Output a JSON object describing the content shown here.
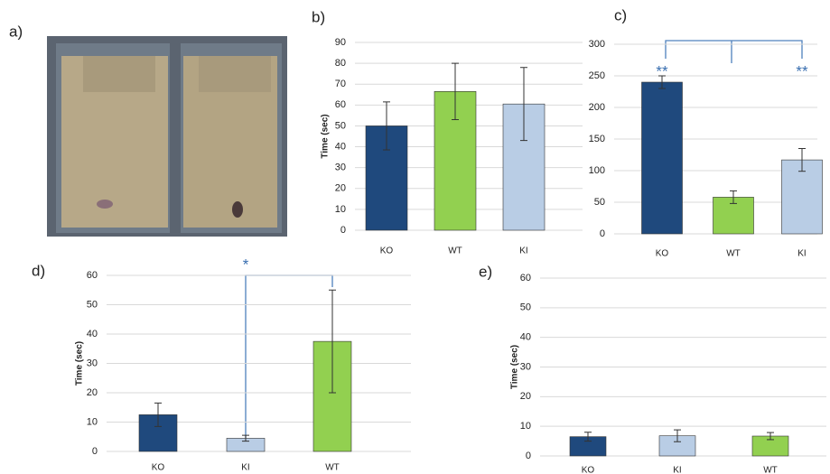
{
  "photo": {
    "label": "a)"
  },
  "chart_data": [
    {
      "type": "bar",
      "label": "b)",
      "y_label": "Time (sec)",
      "categories": [
        "KO",
        "WT",
        "KI"
      ],
      "values": [
        50,
        66.5,
        60.5
      ],
      "errors": [
        11.5,
        13.5,
        17.5
      ],
      "colors": [
        "#1f497d",
        "#92d050",
        "#b9cde5"
      ],
      "ylim": [
        0,
        90
      ],
      "yticks": [
        0,
        10,
        20,
        30,
        40,
        50,
        60,
        70,
        80,
        90
      ],
      "grid": true
    },
    {
      "type": "bar",
      "label": "c)",
      "categories": [
        "KO",
        "WT",
        "KI"
      ],
      "values": [
        240,
        58,
        117
      ],
      "errors": [
        10,
        10,
        18
      ],
      "colors": [
        "#1f497d",
        "#92d050",
        "#b9cde5"
      ],
      "ylim": [
        0,
        300
      ],
      "yticks": [
        0,
        50,
        100,
        150,
        200,
        250,
        300
      ],
      "grid": true,
      "annotations": [
        {
          "text": "**",
          "category": "KO"
        },
        {
          "text": "**",
          "category": "KI"
        }
      ]
    },
    {
      "type": "bar",
      "label": "d)",
      "y_label": "Time (sec)",
      "categories": [
        "KO",
        "KI",
        "WT"
      ],
      "values": [
        12.5,
        4.5,
        37.5
      ],
      "errors": [
        4,
        1,
        17.5
      ],
      "colors": [
        "#1f497d",
        "#b9cde5",
        "#92d050"
      ],
      "ylim": [
        0,
        60
      ],
      "yticks": [
        0,
        10,
        20,
        30,
        40,
        50,
        60
      ],
      "grid": true,
      "annotations": [
        {
          "text": "*",
          "category": "KI"
        }
      ]
    },
    {
      "type": "bar",
      "label": "e)",
      "y_label": "Time (sec)",
      "categories": [
        "KO",
        "KI",
        "WT"
      ],
      "values": [
        6.5,
        6.8,
        6.7
      ],
      "errors": [
        1.5,
        2,
        1.2
      ],
      "colors": [
        "#1f497d",
        "#b9cde5",
        "#92d050"
      ],
      "ylim": [
        0,
        60
      ],
      "yticks": [
        0,
        10,
        20,
        30,
        40,
        50,
        60
      ],
      "grid": true
    }
  ]
}
